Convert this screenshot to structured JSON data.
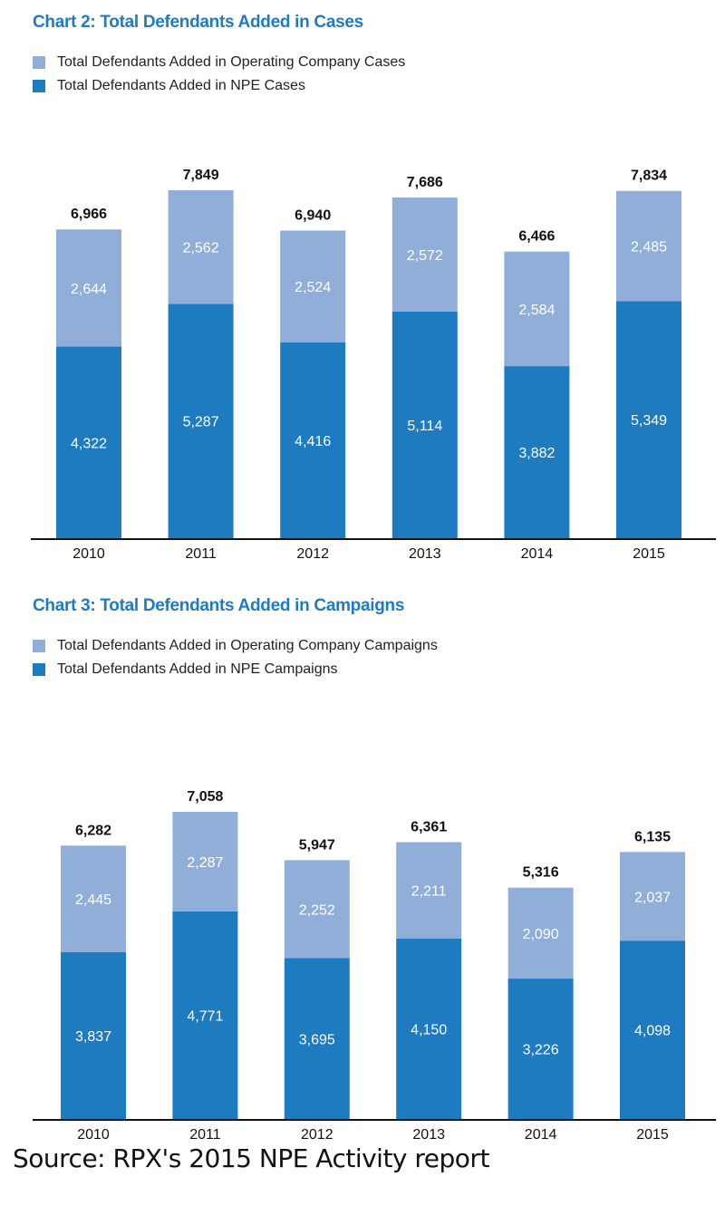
{
  "colors": {
    "title": "#1f7bc0",
    "npe": "#1f7bc0",
    "operating": "#91aed8",
    "axis": "#111111"
  },
  "chart_data": [
    {
      "type": "bar",
      "stacked": true,
      "title": "Chart 2: Total Defendants Added in Cases",
      "xlabel": "",
      "ylabel": "",
      "categories": [
        "2010",
        "2011",
        "2012",
        "2013",
        "2014",
        "2015"
      ],
      "series": [
        {
          "name": "Total Defendants Added in NPE Cases",
          "key": "npe",
          "values": [
            4322,
            5287,
            4416,
            5114,
            3882,
            5349
          ],
          "labels": [
            "4,322",
            "5,287",
            "4,416",
            "5,114",
            "3,882",
            "5,349"
          ]
        },
        {
          "name": "Total Defendants Added in Operating Company Cases",
          "key": "operating",
          "values": [
            2644,
            2562,
            2524,
            2572,
            2584,
            2485
          ],
          "labels": [
            "2,644",
            "2,562",
            "2,524",
            "2,572",
            "2,584",
            "2,485"
          ]
        }
      ],
      "totals": [
        6966,
        7849,
        6940,
        7686,
        6466,
        7834
      ],
      "total_labels": [
        "6,966",
        "7,849",
        "6,940",
        "7,686",
        "6,466",
        "7,834"
      ],
      "legend": [
        {
          "label": "Total Defendants Added in Operating Company Cases",
          "key": "operating"
        },
        {
          "label": "Total Defendants Added in NPE Cases",
          "key": "npe"
        }
      ],
      "legend_position": "top-left",
      "grid": false,
      "ylim": [
        0,
        8000
      ]
    },
    {
      "type": "bar",
      "stacked": true,
      "title": "Chart 3: Total Defendants Added in Campaigns",
      "xlabel": "",
      "ylabel": "",
      "categories": [
        "2010",
        "2011",
        "2012",
        "2013",
        "2014",
        "2015"
      ],
      "series": [
        {
          "name": "Total Defendants Added in NPE Campaigns",
          "key": "npe",
          "values": [
            3837,
            4771,
            3695,
            4150,
            3226,
            4098
          ],
          "labels": [
            "3,837",
            "4,771",
            "3,695",
            "4,150",
            "3,226",
            "4,098"
          ]
        },
        {
          "name": "Total Defendants Added in Operating Company Campaigns",
          "key": "operating",
          "values": [
            2445,
            2287,
            2252,
            2211,
            2090,
            2037
          ],
          "labels": [
            "2,445",
            "2,287",
            "2,252",
            "2,211",
            "2,090",
            "2,037"
          ]
        }
      ],
      "totals": [
        6282,
        7058,
        5947,
        6361,
        5316,
        6135
      ],
      "total_labels": [
        "6,282",
        "7,058",
        "5,947",
        "6,361",
        "5,316",
        "6,135"
      ],
      "legend": [
        {
          "label": "Total Defendants Added in Operating Company Campaigns",
          "key": "operating"
        },
        {
          "label": "Total Defendants Added in NPE Campaigns",
          "key": "npe"
        }
      ],
      "legend_position": "top-left",
      "grid": false,
      "ylim": [
        0,
        7200
      ]
    }
  ],
  "source": "Source: RPX's 2015 NPE Activity report"
}
